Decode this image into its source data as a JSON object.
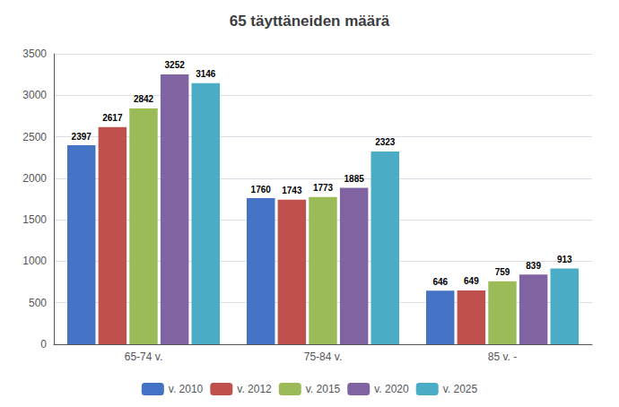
{
  "chart_data": {
    "type": "bar",
    "title": "65 täyttäneiden määrä",
    "categories": [
      "65-74 v.",
      "75-84 v.",
      "85 v. -"
    ],
    "series": [
      {
        "name": "v. 2010",
        "color": "#4472C4",
        "values": [
          2397,
          1760,
          646
        ]
      },
      {
        "name": "v. 2012",
        "color": "#C0504D",
        "values": [
          2617,
          1743,
          649
        ]
      },
      {
        "name": "v. 2015",
        "color": "#9BBB59",
        "values": [
          2842,
          1773,
          759
        ]
      },
      {
        "name": "v. 2020",
        "color": "#8064A2",
        "values": [
          3252,
          1885,
          839
        ]
      },
      {
        "name": "v. 2025",
        "color": "#4BACC6",
        "values": [
          3146,
          2323,
          913
        ]
      }
    ],
    "ylim": [
      0,
      3500
    ],
    "yticks": [
      0,
      500,
      1000,
      1500,
      2000,
      2500,
      3000,
      3500
    ],
    "grid": true,
    "legend": "bottom",
    "data_labels": true
  }
}
